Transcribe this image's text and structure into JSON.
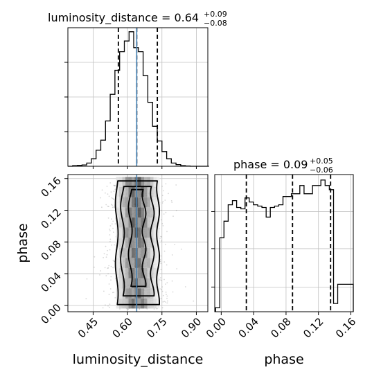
{
  "chart_data": {
    "type": "corner",
    "params": [
      "luminosity_distance",
      "phase"
    ],
    "truths": {
      "luminosity_distance": 0.64
    },
    "colors": {
      "truth": "#4682b4",
      "hist": "#000000",
      "grid": "#c0c0c0",
      "scatter": "#8c8c8c"
    },
    "panels": {
      "ld_hist": {
        "title_main": "luminosity_distance = 0.64",
        "title_sup": "+0.09",
        "title_sub": "−0.08",
        "median": 0.64,
        "quantiles": [
          0.56,
          0.64,
          0.73
        ],
        "xlim": [
          0.34,
          0.95
        ],
        "bin_edges": [
          0.34,
          0.3605,
          0.381,
          0.4015,
          0.422,
          0.4425,
          0.463,
          0.4835,
          0.504,
          0.5245,
          0.545,
          0.5655,
          0.586,
          0.6065,
          0.627,
          0.6475,
          0.668,
          0.6885,
          0.709,
          0.7295,
          0.75,
          0.7705,
          0.791,
          0.8115,
          0.832,
          0.8525,
          0.873,
          0.8935,
          0.914,
          0.9345,
          0.955
        ],
        "counts": [
          0,
          2,
          3,
          5,
          12,
          28,
          60,
          98,
          170,
          270,
          360,
          430,
          470,
          505,
          445,
          430,
          340,
          240,
          150,
          95,
          55,
          28,
          12,
          6,
          2,
          1,
          0,
          0,
          0,
          0
        ],
        "ylim": [
          0,
          520
        ]
      },
      "phase_hist": {
        "title_main": "phase = 0.09",
        "title_sup": "+0.05",
        "title_sub": "−0.06",
        "median": 0.088,
        "quantiles": [
          0.031,
          0.088,
          0.135
        ],
        "xlim": [
          -0.008,
          0.163
        ],
        "ylim": [
          0,
          500
        ],
        "bin_edges": [
          -0.007,
          -0.0018,
          0.0034,
          0.0086,
          0.0138,
          0.019,
          0.0242,
          0.0294,
          0.0346,
          0.0398,
          0.045,
          0.0502,
          0.0554,
          0.0606,
          0.0658,
          0.071,
          0.0762,
          0.0814,
          0.0866,
          0.0918,
          0.097,
          0.1022,
          0.1074,
          0.1126,
          0.1178,
          0.123,
          0.1282,
          0.1334,
          0.1386,
          0.1438,
          0.149,
          0.1542,
          0.1594,
          0.163
        ],
        "counts": [
          15,
          270,
          330,
          390,
          405,
          380,
          375,
          415,
          400,
          390,
          385,
          380,
          345,
          380,
          385,
          390,
          420,
          420,
          430,
          430,
          460,
          430,
          430,
          460,
          460,
          480,
          460,
          445,
          30,
          100,
          100,
          100,
          100
        ],
        "xticks": [
          0.0,
          0.04,
          0.08,
          0.12,
          0.16
        ],
        "xtick_labels": [
          "0.00",
          "0.04",
          "0.08",
          "0.12",
          "0.16"
        ],
        "xlabel": "phase"
      },
      "joint": {
        "xlim": [
          0.34,
          0.95
        ],
        "ylim": [
          -0.008,
          0.165
        ],
        "xticks": [
          0.45,
          0.6,
          0.75,
          0.9
        ],
        "xtick_labels": [
          "0.45",
          "0.60",
          "0.75",
          "0.90"
        ],
        "yticks": [
          0.0,
          0.04,
          0.08,
          0.12,
          0.16
        ],
        "ytick_labels": [
          "0.00",
          "0.04",
          "0.08",
          "0.12",
          "0.16"
        ],
        "xlabel": "luminosity_distance",
        "ylabel": "phase",
        "contour_levels": [
          0.39,
          0.86,
          0.99
        ]
      }
    }
  }
}
